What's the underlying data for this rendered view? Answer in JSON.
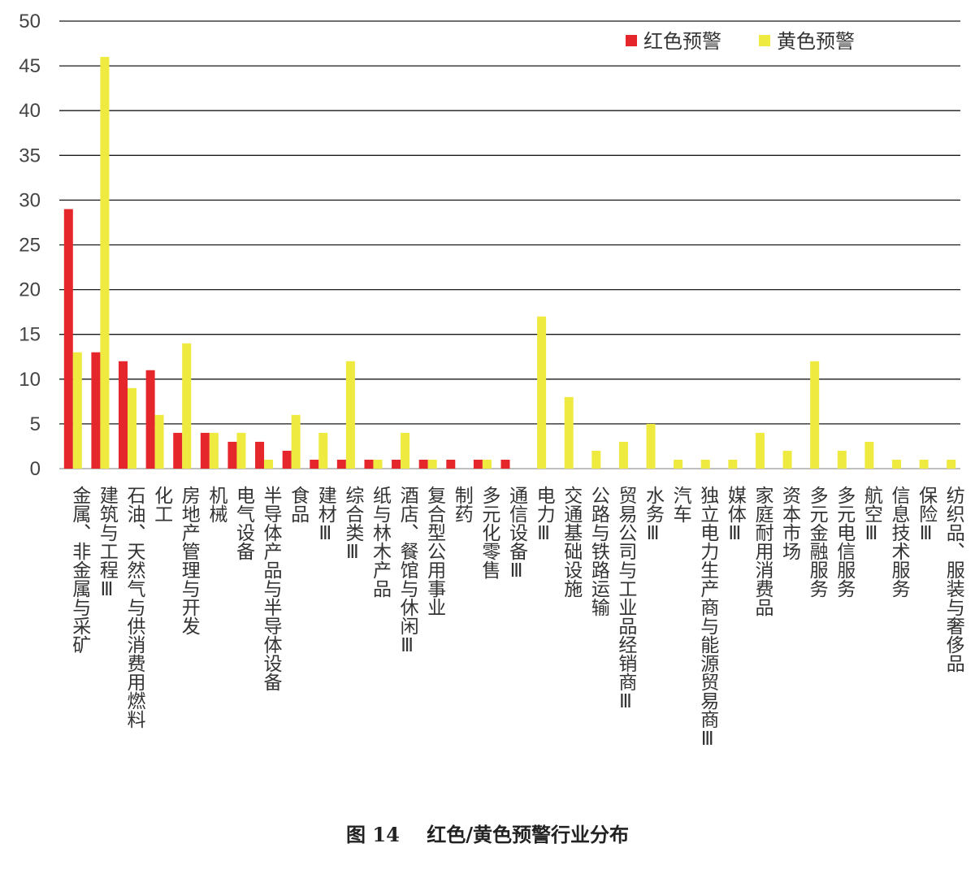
{
  "caption": "图 14    红色/黄色预警行业分布",
  "colors": {
    "red": "#e5262b",
    "yellow": "#eeea3f",
    "grid": "#1a1a1a",
    "axis": "#999999"
  },
  "chart_data": {
    "type": "bar",
    "title": "",
    "xlabel": "",
    "ylabel": "",
    "ylim": [
      0,
      50
    ],
    "yticks": [
      0,
      5,
      10,
      15,
      20,
      25,
      30,
      35,
      40,
      45,
      50
    ],
    "grid": true,
    "legend_position": "top-right",
    "categories": [
      "金属、非金属与采矿",
      "建筑与工程Ⅲ",
      "石油、天然气与供消费用燃料",
      "化工",
      "房地产管理与开发",
      "机械",
      "电气设备",
      "半导体产品与半导体设备",
      "食品",
      "建材Ⅲ",
      "综合类Ⅲ",
      "纸与林木产品",
      "酒店、餐馆与休闲Ⅲ",
      "复合型公用事业",
      "制药",
      "多元化零售",
      "通信设备Ⅲ",
      "电力Ⅲ",
      "交通基础设施",
      "公路与铁路运输",
      "贸易公司与工业品经销商Ⅲ",
      "水务Ⅲ",
      "汽车",
      "独立电力生产商与能源贸易商Ⅲ",
      "媒体Ⅲ",
      "家庭耐用消费品",
      "资本市场",
      "多元金融服务",
      "多元电信服务",
      "航空Ⅲ",
      "信息技术服务",
      "保险Ⅲ",
      "纺织品、服装与奢侈品"
    ],
    "series": [
      {
        "name": "红色预警",
        "color": "#e5262b",
        "values": [
          29,
          13,
          12,
          11,
          4,
          4,
          3,
          3,
          2,
          1,
          1,
          1,
          1,
          1,
          1,
          1,
          1,
          0,
          0,
          0,
          0,
          0,
          0,
          0,
          0,
          0,
          0,
          0,
          0,
          0,
          0,
          0,
          0
        ]
      },
      {
        "name": "黄色预警",
        "color": "#eeea3f",
        "values": [
          13,
          46,
          9,
          6,
          14,
          4,
          4,
          1,
          6,
          4,
          12,
          1,
          4,
          1,
          0,
          1,
          0,
          17,
          8,
          2,
          3,
          5,
          1,
          1,
          1,
          4,
          2,
          12,
          2,
          3,
          1,
          1,
          1
        ]
      }
    ]
  }
}
